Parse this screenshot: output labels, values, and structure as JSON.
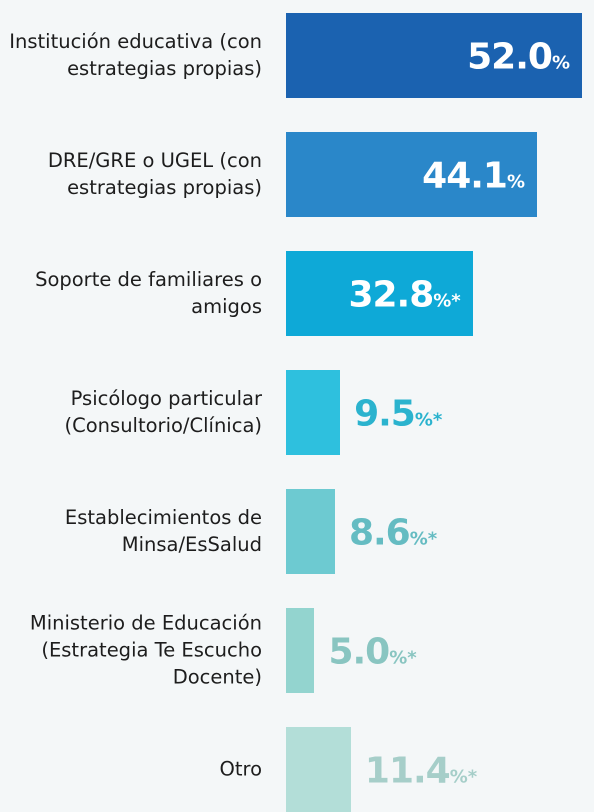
{
  "chart_data": {
    "type": "bar",
    "orientation": "horizontal",
    "categories": [
      "Institución educativa (con estrategias propias)",
      "DRE/GRE o UGEL (con estrategias propias)",
      "Soporte de familiares o amigos",
      "Psicólogo particular (Consultorio/Clínica)",
      "Establecimientos de Minsa/EsSalud",
      "Ministerio de Educación (Estrategia Te Escucho Docente)",
      "Otro"
    ],
    "values": [
      52.0,
      44.1,
      32.8,
      9.5,
      8.6,
      5.0,
      11.4
    ],
    "value_labels": [
      "52.0%",
      "44.1%",
      "32.8%*",
      "9.5%*",
      "8.6%*",
      "5.0%*",
      "11.4%*"
    ],
    "colors": [
      "#1b62b0",
      "#2a87c9",
      "#0ea9d7",
      "#2ec0de",
      "#6dcad1",
      "#93d4cf",
      "#b3ded8"
    ]
  }
}
